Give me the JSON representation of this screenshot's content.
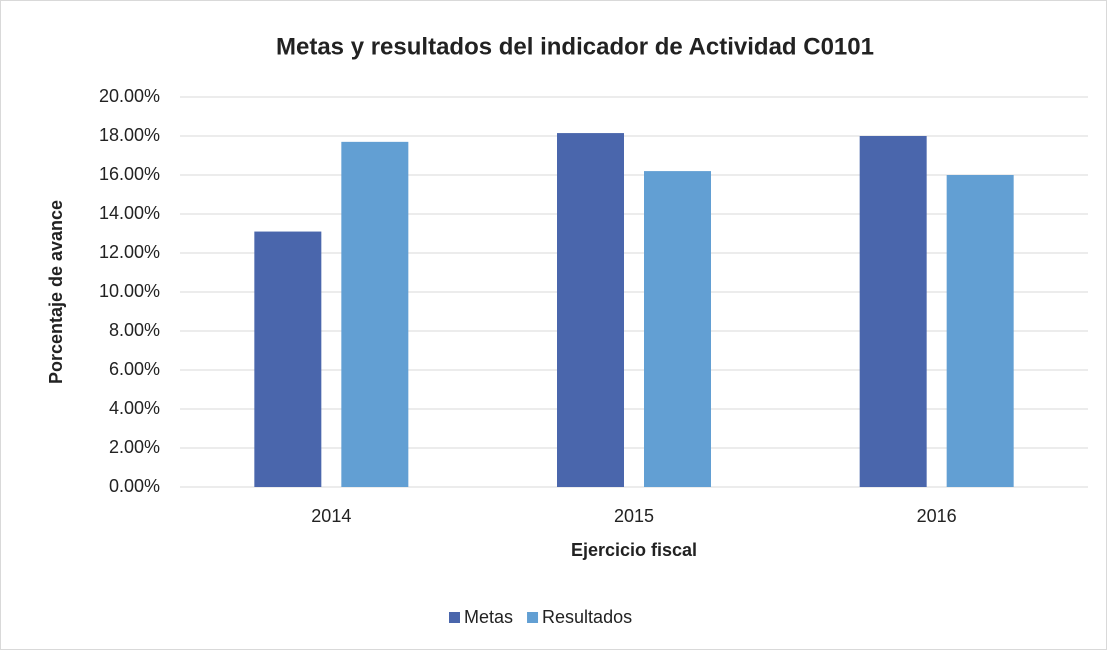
{
  "chart_data": {
    "type": "bar",
    "title": "Metas y resultados del indicador de Actividad C0101",
    "x_label": "Ejercicio fiscal",
    "y_label": "Porcentaje de avance",
    "categories": [
      "2014",
      "2015",
      "2016"
    ],
    "series": [
      {
        "name": "Metas",
        "color": "#4a66ac",
        "values": [
          13.1,
          18.15,
          18.0
        ]
      },
      {
        "name": "Resultados",
        "color": "#629fd3",
        "values": [
          17.7,
          16.2,
          16.0
        ]
      }
    ],
    "ylim": [
      0,
      20
    ],
    "yticks": [
      {
        "value": 0,
        "label": "0.00%"
      },
      {
        "value": 2,
        "label": "2.00%"
      },
      {
        "value": 4,
        "label": "4.00%"
      },
      {
        "value": 6,
        "label": "6.00%"
      },
      {
        "value": 8,
        "label": "8.00%"
      },
      {
        "value": 10,
        "label": "10.00%"
      },
      {
        "value": 12,
        "label": "12.00%"
      },
      {
        "value": 14,
        "label": "14.00%"
      },
      {
        "value": 16,
        "label": "16.00%"
      },
      {
        "value": 18,
        "label": "18.00%"
      },
      {
        "value": 20,
        "label": "20.00%"
      }
    ],
    "grid": true,
    "legend": "bottom"
  }
}
